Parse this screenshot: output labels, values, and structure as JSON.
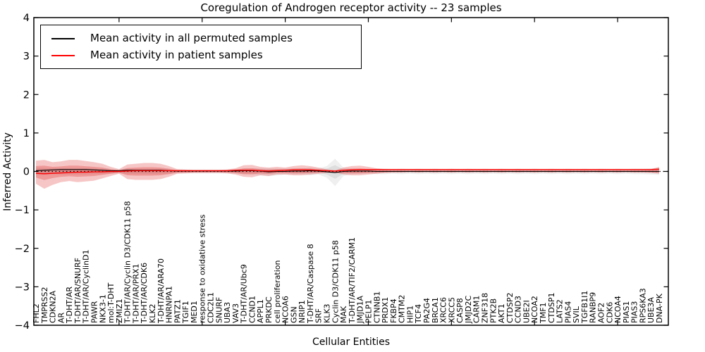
{
  "title": "Coregulation of Androgen receptor activity -- 23 samples",
  "axes": {
    "xlabel": "Cellular Entities",
    "ylabel": "Inferred Activity"
  },
  "legend": {
    "items": [
      {
        "label": "Mean activity in all permuted samples",
        "color": "#000000"
      },
      {
        "label": "Mean activity in patient samples",
        "color": "#ff0000"
      }
    ]
  },
  "chart_data": {
    "type": "line",
    "title": "Coregulation of Androgen receptor activity -- 23 samples",
    "xlabel": "Cellular Entities",
    "ylabel": "Inferred Activity",
    "ylim": [
      -4,
      4
    ],
    "grid": false,
    "legend_position": "upper left",
    "zero_line": {
      "style": "dotted",
      "color": "#000000",
      "y": 0
    },
    "yticks": [
      {
        "value": -4,
        "label": "−4"
      },
      {
        "value": -3,
        "label": "−3"
      },
      {
        "value": -2,
        "label": "−2"
      },
      {
        "value": -1,
        "label": "−1"
      },
      {
        "value": 0,
        "label": "0"
      },
      {
        "value": 1,
        "label": "1"
      },
      {
        "value": 2,
        "label": "2"
      },
      {
        "value": 3,
        "label": "3"
      },
      {
        "value": 4,
        "label": "4"
      }
    ],
    "x_major_ticks": [
      10,
      20,
      30,
      40,
      50,
      60,
      70
    ],
    "categories": [
      "FHL2",
      "TMPRSS2",
      "CDKN2A",
      "AR",
      "T-DHT/AR",
      "T-DHT/AR/SNURF",
      "T-DHT/AR/CyclinD1",
      "PAWR",
      "NKX3-1",
      "mol:T-DHT",
      "ZMIZ1",
      "T-DHT/AR/Cyclin D3/CDK11 p58",
      "T-DHT/AR/PRX1",
      "T-DHT/AR/CDK6",
      "KLK2",
      "T-DHT/AR/ARA70",
      "HNRNPA1",
      "PATZ1",
      "TGIF1",
      "MED1",
      "response to oxidative stress",
      "CDC2L1",
      "SNURF",
      "UBA3",
      "VAV3",
      "T-DHT/AR/Ubc9",
      "CCND1",
      "APPL1",
      "PRKDC",
      "cell proliferation",
      "NCOA6",
      "GSN",
      "NRIP1",
      "T-DHT/AR/Caspase 8",
      "SRF",
      "KLK3",
      "Cyclin D3/CDK11 p58",
      "MAK",
      "T-DHT/AR/TIF2/CARM1",
      "JMJD1A",
      "PELP1",
      "CTNNB1",
      "PRDX1",
      "FKBP4",
      "CMTM2",
      "HIP1",
      "TCF4",
      "PA2G4",
      "BRCA1",
      "XRCC6",
      "XRCC5",
      "CASP8",
      "JMJD2C",
      "CARM1",
      "ZNF318",
      "PTK2B",
      "AKT1",
      "CTDSP2",
      "CCND3",
      "UBE2I",
      "NCOA2",
      "TMF1",
      "CTDSP1",
      "LATS2",
      "PIAS4",
      "SVIL",
      "TGFB1I1",
      "RANBP9",
      "AOF2",
      "CDK6",
      "NCOA4",
      "PIAS1",
      "PIAS3",
      "RPS6KA3",
      "UBE3A",
      "DNA-PK"
    ],
    "series": [
      {
        "name": "Mean activity in all permuted samples",
        "color": "#000000",
        "width": 1.1,
        "values": [
          0.02,
          0.03,
          0.04,
          0.05,
          0.05,
          0.05,
          0.05,
          0.04,
          0.03,
          0.02,
          0.02,
          0.03,
          0.03,
          0.03,
          0.03,
          0.03,
          0.02,
          0.01,
          0.01,
          0.01,
          0.01,
          0.01,
          0.01,
          0.01,
          0.01,
          0.02,
          0.02,
          0.01,
          -0.01,
          0.0,
          0.0,
          0.01,
          0.01,
          0.02,
          0.01,
          -0.01,
          -0.03,
          0.0,
          0.01,
          0.01,
          0.01,
          0.0,
          0.0,
          0.0,
          0.0,
          0.0,
          0.0,
          0.0,
          0.0,
          0.0,
          0.0,
          0.0,
          0.0,
          0.0,
          0.0,
          0.0,
          0.0,
          0.0,
          0.0,
          0.0,
          0.0,
          0.0,
          0.0,
          0.0,
          0.0,
          0.0,
          0.0,
          0.0,
          0.0,
          0.0,
          0.0,
          0.0,
          0.0,
          0.0,
          0.0,
          0.0
        ]
      },
      {
        "name": "Mean activity in patient samples",
        "color": "#ff0000",
        "width": 1.4,
        "values": [
          -0.05,
          -0.06,
          -0.05,
          -0.04,
          -0.03,
          -0.02,
          -0.02,
          -0.01,
          -0.01,
          0.0,
          0.0,
          0.01,
          0.02,
          0.02,
          0.02,
          0.02,
          0.02,
          0.02,
          0.02,
          0.02,
          0.02,
          0.02,
          0.02,
          0.02,
          0.03,
          0.03,
          0.03,
          0.02,
          0.01,
          0.02,
          0.03,
          0.04,
          0.04,
          0.04,
          0.03,
          0.02,
          0.01,
          0.03,
          0.04,
          0.05,
          0.05,
          0.05,
          0.05,
          0.05,
          0.05,
          0.05,
          0.05,
          0.05,
          0.05,
          0.05,
          0.05,
          0.05,
          0.05,
          0.05,
          0.05,
          0.05,
          0.05,
          0.05,
          0.05,
          0.05,
          0.05,
          0.05,
          0.05,
          0.05,
          0.05,
          0.05,
          0.05,
          0.05,
          0.05,
          0.05,
          0.05,
          0.05,
          0.05,
          0.05,
          0.05,
          0.06
        ]
      }
    ],
    "bands": [
      {
        "name": "permuted-samples-band",
        "color": "#999999",
        "outer_opacity": 0.16,
        "inner_opacity": 0.2,
        "inner_scale": 0.5,
        "upper": [
          0.1,
          0.09,
          0.08,
          0.08,
          0.08,
          0.08,
          0.08,
          0.07,
          0.07,
          0.06,
          0.05,
          0.07,
          0.07,
          0.07,
          0.07,
          0.07,
          0.06,
          0.05,
          0.05,
          0.05,
          0.05,
          0.05,
          0.05,
          0.05,
          0.06,
          0.07,
          0.07,
          0.08,
          0.08,
          0.07,
          0.08,
          0.08,
          0.07,
          0.1,
          0.08,
          0.14,
          0.33,
          0.1,
          0.07,
          0.06,
          0.06,
          0.07,
          0.07,
          0.06,
          0.07,
          0.06,
          0.07,
          0.06,
          0.07,
          0.06,
          0.07,
          0.06,
          0.07,
          0.06,
          0.07,
          0.06,
          0.07,
          0.06,
          0.07,
          0.06,
          0.07,
          0.06,
          0.07,
          0.06,
          0.07,
          0.06,
          0.07,
          0.06,
          0.07,
          0.06,
          0.07,
          0.06,
          0.07,
          0.07,
          0.08,
          0.09
        ],
        "lower": [
          -0.1,
          -0.09,
          -0.08,
          -0.08,
          -0.08,
          -0.08,
          -0.08,
          -0.07,
          -0.07,
          -0.06,
          -0.05,
          -0.07,
          -0.07,
          -0.07,
          -0.07,
          -0.07,
          -0.06,
          -0.05,
          -0.05,
          -0.05,
          -0.05,
          -0.05,
          -0.05,
          -0.05,
          -0.06,
          -0.07,
          -0.07,
          -0.1,
          -0.12,
          -0.1,
          -0.08,
          -0.08,
          -0.07,
          -0.1,
          -0.08,
          -0.16,
          -0.38,
          -0.12,
          -0.07,
          -0.06,
          -0.06,
          -0.07,
          -0.07,
          -0.06,
          -0.07,
          -0.06,
          -0.07,
          -0.06,
          -0.07,
          -0.06,
          -0.07,
          -0.06,
          -0.07,
          -0.06,
          -0.07,
          -0.06,
          -0.07,
          -0.06,
          -0.07,
          -0.06,
          -0.07,
          -0.06,
          -0.07,
          -0.06,
          -0.07,
          -0.06,
          -0.07,
          -0.06,
          -0.07,
          -0.06,
          -0.07,
          -0.06,
          -0.07,
          -0.07,
          -0.08,
          -0.09
        ]
      },
      {
        "name": "patient-samples-band",
        "color": "#dd3333",
        "outer_opacity": 0.28,
        "inner_opacity": 0.3,
        "inner_scale": 0.5,
        "upper": [
          0.28,
          0.3,
          0.24,
          0.26,
          0.3,
          0.3,
          0.27,
          0.24,
          0.2,
          0.12,
          0.06,
          0.18,
          0.2,
          0.22,
          0.22,
          0.2,
          0.14,
          0.06,
          0.05,
          0.04,
          0.04,
          0.04,
          0.04,
          0.05,
          0.08,
          0.16,
          0.17,
          0.12,
          0.1,
          0.12,
          0.1,
          0.14,
          0.16,
          0.14,
          0.1,
          0.06,
          0.03,
          0.1,
          0.14,
          0.15,
          0.12,
          0.08,
          0.06,
          0.05,
          0.05,
          0.04,
          0.05,
          0.04,
          0.05,
          0.04,
          0.05,
          0.04,
          0.05,
          0.04,
          0.05,
          0.04,
          0.05,
          0.04,
          0.05,
          0.04,
          0.05,
          0.04,
          0.05,
          0.04,
          0.05,
          0.04,
          0.05,
          0.04,
          0.05,
          0.04,
          0.05,
          0.04,
          0.05,
          0.05,
          0.06,
          0.12
        ],
        "lower": [
          -0.32,
          -0.45,
          -0.35,
          -0.28,
          -0.25,
          -0.28,
          -0.26,
          -0.24,
          -0.18,
          -0.12,
          -0.06,
          -0.2,
          -0.22,
          -0.22,
          -0.22,
          -0.2,
          -0.14,
          -0.06,
          -0.05,
          -0.04,
          -0.04,
          -0.04,
          -0.04,
          -0.05,
          -0.08,
          -0.14,
          -0.15,
          -0.1,
          -0.12,
          -0.08,
          -0.08,
          -0.1,
          -0.1,
          -0.08,
          -0.06,
          -0.04,
          -0.03,
          -0.08,
          -0.1,
          -0.1,
          -0.08,
          -0.06,
          -0.04,
          -0.03,
          -0.03,
          -0.02,
          -0.03,
          -0.02,
          -0.03,
          -0.02,
          -0.03,
          -0.02,
          -0.03,
          -0.02,
          -0.03,
          -0.02,
          -0.03,
          -0.02,
          -0.03,
          -0.02,
          -0.03,
          -0.02,
          -0.03,
          -0.02,
          -0.03,
          -0.02,
          -0.03,
          -0.02,
          -0.03,
          -0.02,
          -0.03,
          -0.02,
          -0.03,
          -0.03,
          -0.04,
          -0.06
        ]
      }
    ]
  }
}
